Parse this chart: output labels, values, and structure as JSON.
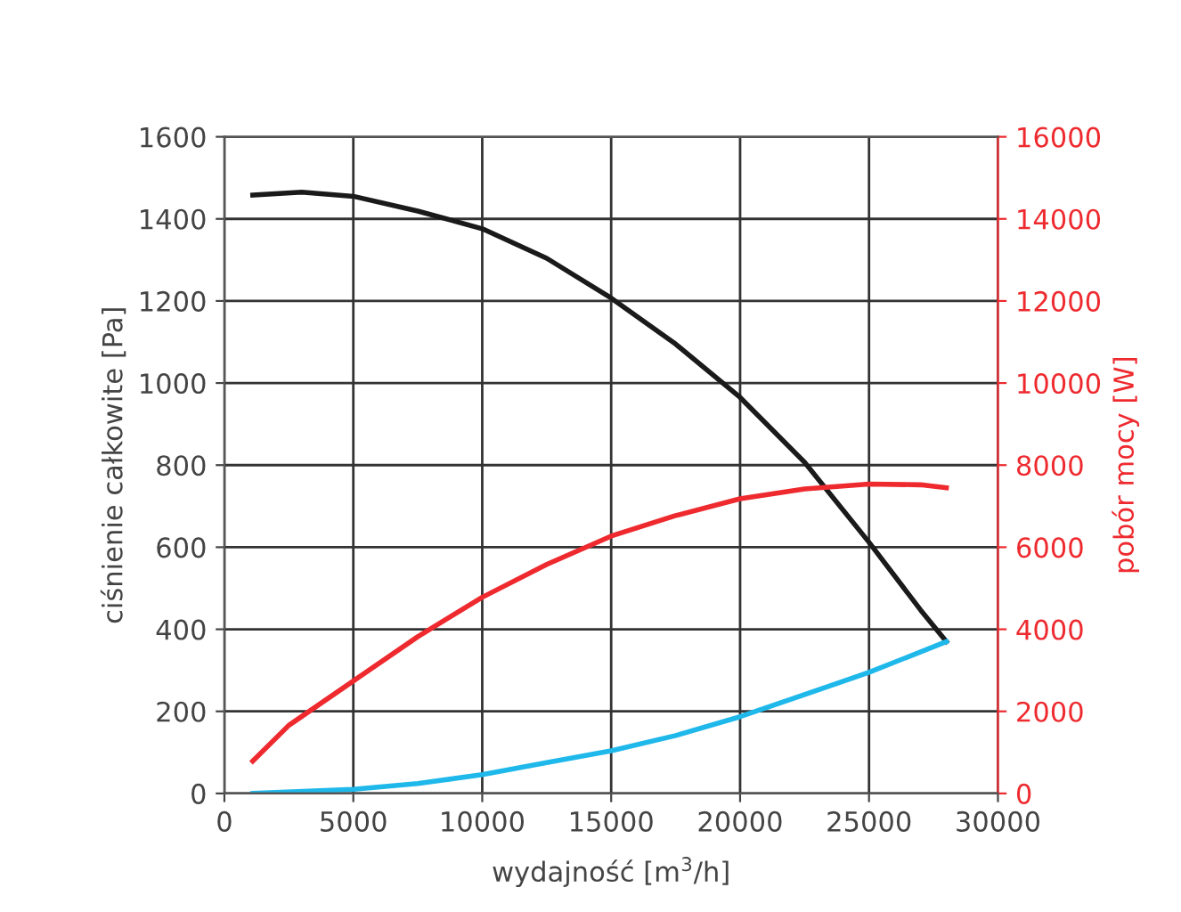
{
  "chart_data": {
    "type": "line",
    "xlabel": "wydajność [m$^{3}$/h]",
    "ylabel": "ciśnienie całkowite [Pa]",
    "y2label": "pobór mocy [W]",
    "xlim": [
      0,
      30000
    ],
    "xticks": [
      0,
      5000,
      10000,
      15000,
      20000,
      25000,
      30000
    ],
    "ylim": [
      0,
      1600
    ],
    "yticks": [
      0,
      200,
      400,
      600,
      800,
      1000,
      1200,
      1400,
      1600
    ],
    "y2lim": [
      0,
      16000
    ],
    "y2ticks": [
      0,
      2000,
      4000,
      6000,
      8000,
      10000,
      12000,
      14000,
      16000
    ],
    "grid": true,
    "legend": false,
    "marker": "none",
    "line_style": "solid",
    "series": [
      {
        "color": "#1a1a1a",
        "x": [
          1100,
          3000,
          5000,
          7500,
          10000,
          12500,
          15000,
          17500,
          20000,
          22500,
          25000,
          27000,
          28000
        ],
        "values": [
          1458,
          1465,
          1455,
          1419,
          1376,
          1304,
          1207,
          1095,
          965,
          807,
          612,
          447,
          370
        ]
      },
      {
        "color": "#ee2a2f",
        "axis": "y2",
        "x": [
          1100,
          2500,
          5000,
          7500,
          10000,
          12500,
          15000,
          17500,
          20000,
          22500,
          25000,
          27000,
          28000
        ],
        "values": [
          790,
          1660,
          2740,
          3820,
          4780,
          5580,
          6270,
          6770,
          7180,
          7420,
          7540,
          7520,
          7450
        ]
      },
      {
        "color": "#1fb8ea",
        "x": [
          1100,
          5000,
          7500,
          10000,
          12500,
          15000,
          17500,
          20000,
          22500,
          25000,
          28000
        ],
        "values": [
          0,
          10,
          24,
          46,
          75,
          104,
          141,
          187,
          241,
          295,
          370
        ]
      }
    ]
  }
}
